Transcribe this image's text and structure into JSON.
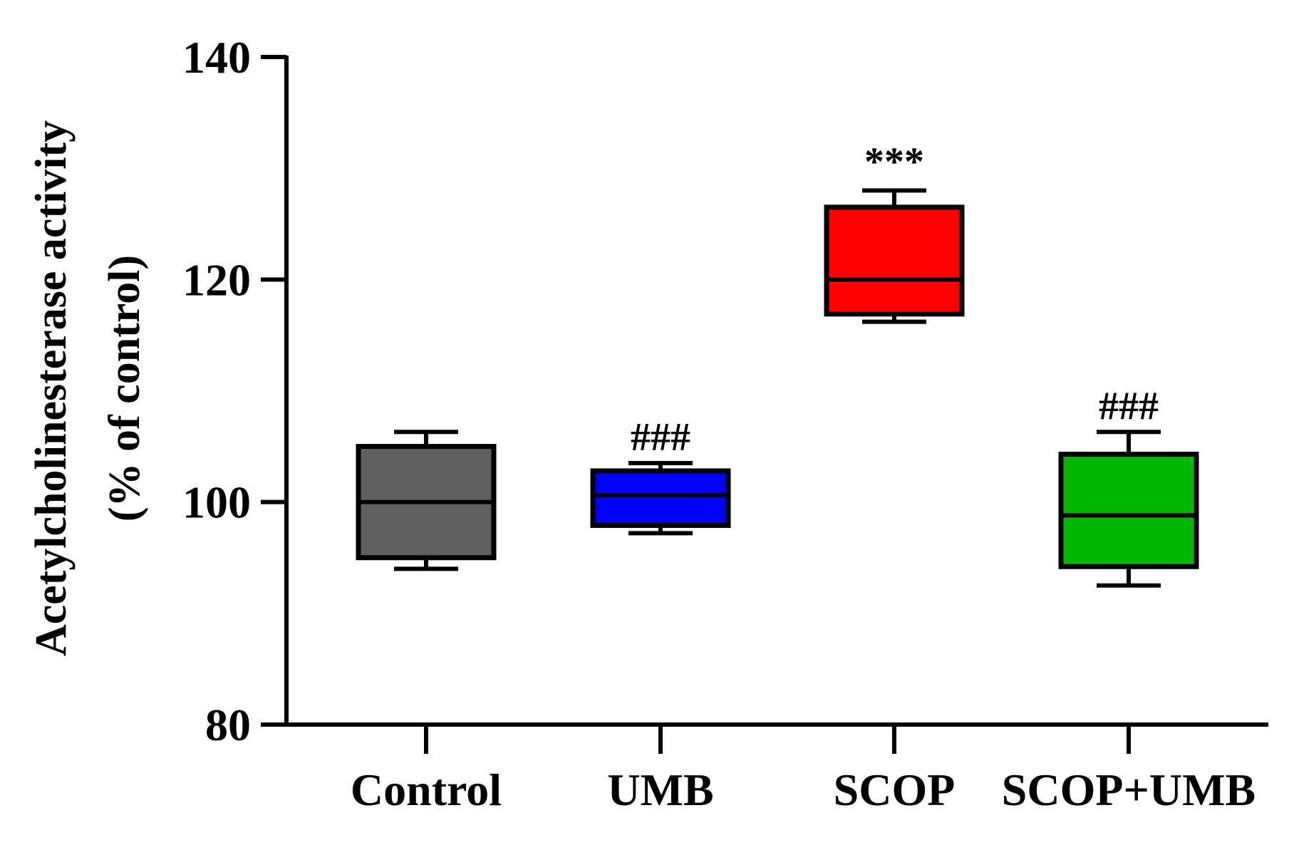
{
  "chart_data": {
    "type": "box",
    "ylabel_line1": "Acetylcholinesterase activity",
    "ylabel_line2": "(% of control)",
    "ylim": [
      80,
      140
    ],
    "yticks": [
      80,
      100,
      120,
      140
    ],
    "categories": [
      "Control",
      "UMB",
      "SCOP",
      "SCOP+UMB"
    ],
    "boxes": [
      {
        "name": "Control",
        "min": 94.0,
        "q1": 95.0,
        "median": 100.0,
        "q3": 105.0,
        "max": 106.3,
        "color": "#606060",
        "annotation": ""
      },
      {
        "name": "UMB",
        "min": 97.2,
        "q1": 97.9,
        "median": 100.6,
        "q3": 102.8,
        "max": 103.5,
        "color": "#0000FF",
        "annotation": "###"
      },
      {
        "name": "SCOP",
        "min": 116.2,
        "q1": 116.9,
        "median": 120.0,
        "q3": 126.5,
        "max": 128.0,
        "color": "#FF0000",
        "annotation": "***"
      },
      {
        "name": "SCOP+UMB",
        "min": 92.5,
        "q1": 94.2,
        "median": 98.8,
        "q3": 104.3,
        "max": 106.3,
        "color": "#00B800",
        "annotation": "###"
      }
    ],
    "grid": false,
    "legend": "none"
  }
}
